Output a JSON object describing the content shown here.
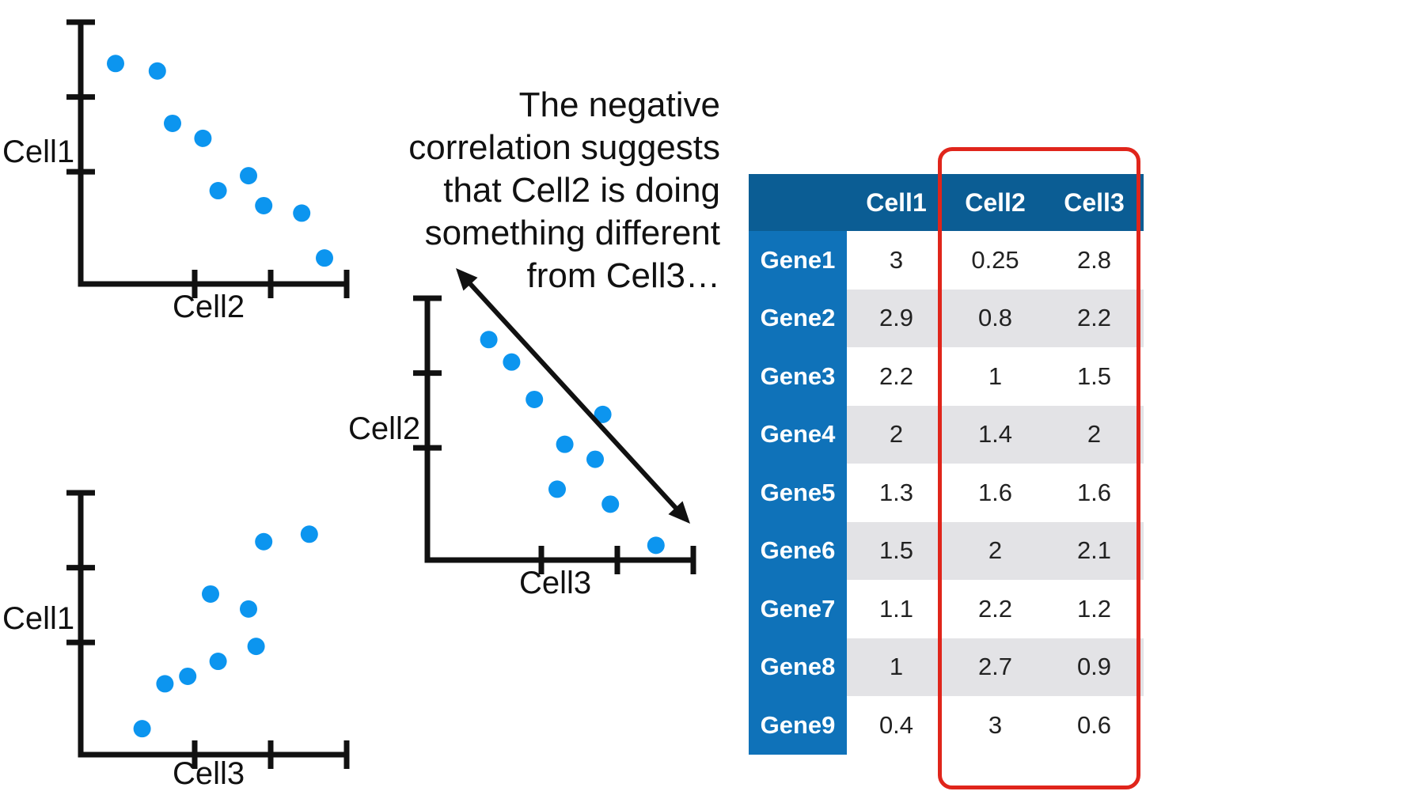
{
  "annotation": {
    "lines": [
      "The negative",
      "correlation suggests",
      "that Cell2 is doing",
      "something different",
      "from Cell3…"
    ]
  },
  "colors": {
    "point": "#0c95ef",
    "axis": "#111111",
    "header_bg": "#0b5d94",
    "row_header_bg": "#0f72b9",
    "stripe": "#e3e3e6",
    "highlight": "#e0251b"
  },
  "chart_data": [
    {
      "type": "scatter",
      "xlabel": "Cell2",
      "ylabel": "Cell1",
      "x": [
        0.25,
        0.8,
        1,
        1.4,
        1.6,
        2,
        2.2,
        2.7,
        3
      ],
      "y": [
        3,
        2.9,
        2.2,
        2,
        1.3,
        1.5,
        1.1,
        1,
        0.4
      ]
    },
    {
      "type": "scatter",
      "xlabel": "Cell3",
      "ylabel": "Cell1",
      "x": [
        2.8,
        2.2,
        1.5,
        2,
        1.6,
        2.1,
        1.2,
        0.9,
        0.6
      ],
      "y": [
        3,
        2.9,
        2.2,
        2,
        1.3,
        1.5,
        1.1,
        1,
        0.4
      ]
    },
    {
      "type": "scatter",
      "xlabel": "Cell3",
      "ylabel": "Cell2",
      "x": [
        2.8,
        2.2,
        1.5,
        2,
        1.6,
        2.1,
        1.2,
        0.9,
        0.6
      ],
      "y": [
        0.25,
        0.8,
        1,
        1.4,
        1.6,
        2,
        2.2,
        2.7,
        3
      ],
      "trend_arrow": "negative correlation, double-headed"
    },
    {
      "type": "table",
      "columns": [
        "Cell1",
        "Cell2",
        "Cell3"
      ],
      "rows": [
        {
          "label": "Gene1",
          "values": [
            "3",
            "0.25",
            "2.8"
          ]
        },
        {
          "label": "Gene2",
          "values": [
            "2.9",
            "0.8",
            "2.2"
          ]
        },
        {
          "label": "Gene3",
          "values": [
            "2.2",
            "1",
            "1.5"
          ]
        },
        {
          "label": "Gene4",
          "values": [
            "2",
            "1.4",
            "2"
          ]
        },
        {
          "label": "Gene5",
          "values": [
            "1.3",
            "1.6",
            "1.6"
          ]
        },
        {
          "label": "Gene6",
          "values": [
            "1.5",
            "2",
            "2.1"
          ]
        },
        {
          "label": "Gene7",
          "values": [
            "1.1",
            "2.2",
            "1.2"
          ]
        },
        {
          "label": "Gene8",
          "values": [
            "1",
            "2.7",
            "0.9"
          ]
        },
        {
          "label": "Gene9",
          "values": [
            "0.4",
            "3",
            "0.6"
          ]
        }
      ],
      "highlighted_columns": [
        "Cell2",
        "Cell3"
      ]
    }
  ]
}
